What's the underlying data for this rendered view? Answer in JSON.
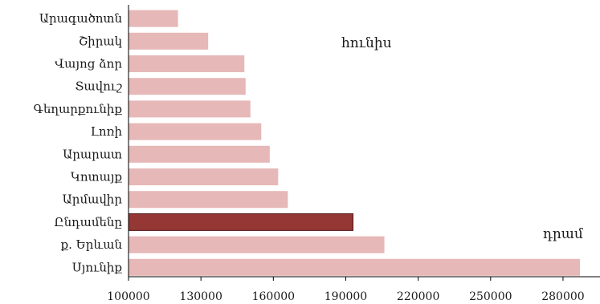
{
  "chart_data": {
    "type": "bar",
    "orientation": "horizontal",
    "categories": [
      "Արագածոտն",
      "Շիրակ",
      "Վայոց ձոր",
      "Տավուշ",
      "Գեղարքունիք",
      "Լոռի",
      "Արարատ",
      "Կոտայք",
      "Արմավիր",
      "Ընդամենը",
      "ք. Երևան",
      "Սյունիք"
    ],
    "values": [
      120500,
      133000,
      148000,
      148500,
      150500,
      155000,
      158500,
      162000,
      166000,
      193000,
      206000,
      287000
    ],
    "highlight_index": 9,
    "colors": {
      "bar": "#e6b8b7",
      "highlight": "#953735",
      "highlight_border": "#4d1a19",
      "axis": "#000000"
    },
    "xlim": [
      100000,
      290000
    ],
    "xticks": [
      100000,
      130000,
      160000,
      190000,
      220000,
      250000,
      280000
    ],
    "annotations": {
      "month": "հունիս",
      "unit": "դրամ"
    },
    "grid": false,
    "legend": "none"
  }
}
